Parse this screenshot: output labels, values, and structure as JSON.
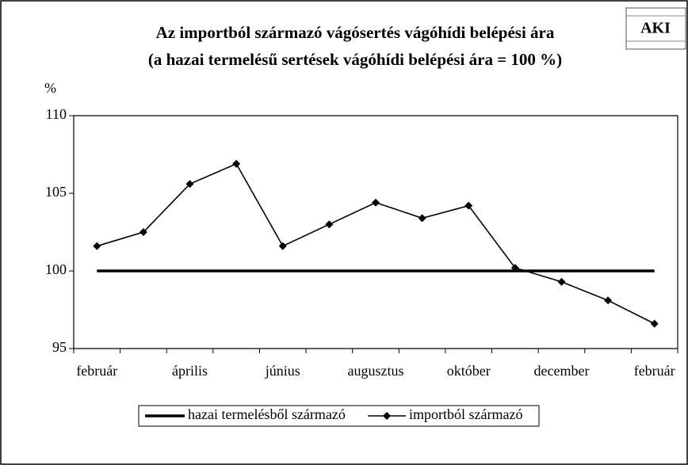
{
  "chart_data": {
    "type": "line",
    "title": "Az importból származó vágósertés vágóhídi belépési ára",
    "subtitle": "(a hazai termelésű sertések vágóhídi belépési ára = 100 %)",
    "y_label": "%",
    "logo": "AKI",
    "categories": [
      "február",
      null,
      "április",
      null,
      "június",
      null,
      "augusztus",
      null,
      "október",
      null,
      "december",
      null,
      "február"
    ],
    "series": [
      {
        "name": "hazai termelésből származó",
        "color": "#000000",
        "values": [
          100,
          100,
          100,
          100,
          100,
          100,
          100,
          100,
          100,
          100,
          100,
          100,
          100
        ]
      },
      {
        "name": "importból származó",
        "color": "#000000",
        "values": [
          101.6,
          102.5,
          105.6,
          106.9,
          101.6,
          103.0,
          104.4,
          103.4,
          104.2,
          100.2,
          99.3,
          98.1,
          96.6
        ]
      }
    ],
    "ylim": [
      95,
      110
    ],
    "yticks": [
      95,
      100,
      105,
      110
    ],
    "grid": false,
    "legend": "bottom"
  }
}
